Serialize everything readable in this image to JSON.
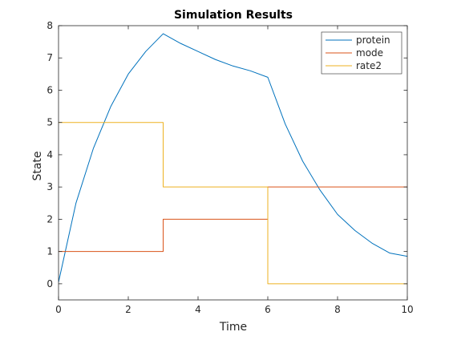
{
  "chart_data": {
    "type": "line",
    "title": "Simulation Results",
    "xlabel": "Time",
    "ylabel": "State",
    "xlim": [
      0,
      10
    ],
    "ylim": [
      -0.5,
      8
    ],
    "xticks": [
      0,
      2,
      4,
      6,
      8,
      10
    ],
    "yticks": [
      0,
      1,
      2,
      3,
      4,
      5,
      6,
      7,
      8
    ],
    "grid": false,
    "legend_position": "top-right",
    "series": [
      {
        "name": "protein",
        "color": "#0072BD",
        "style": "line",
        "x": [
          0,
          0.5,
          1.0,
          1.5,
          2.0,
          2.5,
          3.0,
          3.5,
          4.0,
          4.5,
          5.0,
          5.5,
          6.0,
          6.5,
          7.0,
          7.5,
          8.0,
          8.5,
          9.0,
          9.5,
          10.0
        ],
        "y": [
          0.05,
          2.5,
          4.2,
          5.5,
          6.5,
          7.2,
          7.75,
          7.45,
          7.2,
          6.95,
          6.75,
          6.6,
          6.4,
          4.95,
          3.8,
          2.9,
          2.15,
          1.65,
          1.25,
          0.95,
          0.85
        ]
      },
      {
        "name": "mode",
        "color": "#D95319",
        "style": "step",
        "x": [
          0,
          3,
          6,
          10
        ],
        "y": [
          1,
          2,
          3,
          3
        ]
      },
      {
        "name": "rate2",
        "color": "#EDB120",
        "style": "step",
        "x": [
          0,
          3,
          6,
          10
        ],
        "y": [
          5,
          3,
          0,
          0
        ]
      }
    ]
  }
}
